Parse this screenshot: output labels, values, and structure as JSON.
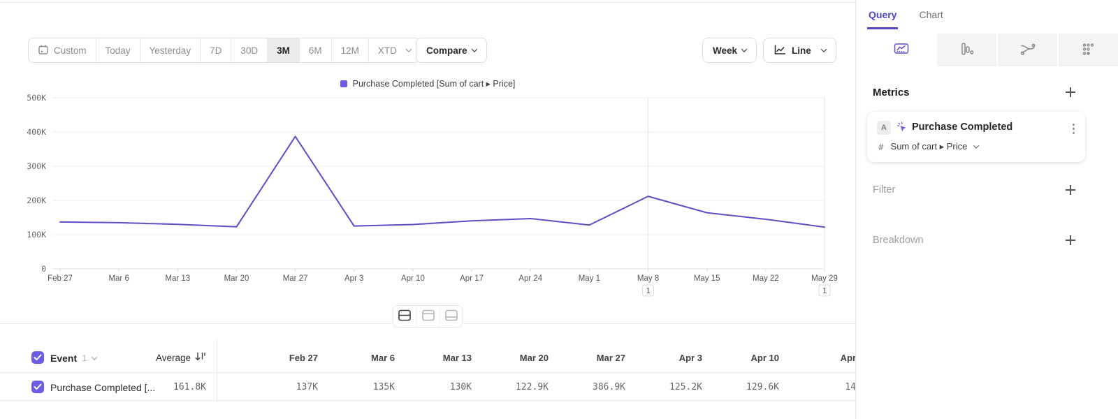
{
  "toolbar": {
    "date_ranges": [
      {
        "label": "Custom",
        "icon": "calendar-icon"
      },
      {
        "label": "Today"
      },
      {
        "label": "Yesterday"
      },
      {
        "label": "7D"
      },
      {
        "label": "30D"
      },
      {
        "label": "3M",
        "active": true
      },
      {
        "label": "6M"
      },
      {
        "label": "12M"
      },
      {
        "label": "XTD",
        "chevron": true
      }
    ],
    "compare_label": "Compare",
    "granularity_label": "Week",
    "chart_type_label": "Line"
  },
  "legend": {
    "label": "Purchase Completed [Sum of cart ▸ Price]",
    "color": "#6c5ce7"
  },
  "chart_data": {
    "type": "line",
    "categories": [
      "Feb 27",
      "Mar 6",
      "Mar 13",
      "Mar 20",
      "Mar 27",
      "Apr 3",
      "Apr 10",
      "Apr 17",
      "Apr 24",
      "May 1",
      "May 8",
      "May 15",
      "May 22",
      "May 29"
    ],
    "series": [
      {
        "name": "Purchase Completed [Sum of cart ▸ Price]",
        "values": [
          137000,
          135000,
          130000,
          122900,
          386900,
          125200,
          129600,
          140300,
          147000,
          128000,
          212000,
          164000,
          145000,
          122000
        ]
      }
    ],
    "title": "",
    "xlabel": "",
    "ylabel": "",
    "ylim": [
      0,
      500000
    ],
    "y_ticks": [
      "0",
      "100K",
      "200K",
      "300K",
      "400K",
      "500K"
    ],
    "grid": true,
    "legend_position": "top-center",
    "line_color": "#5b4fc8",
    "incomplete_markers": [
      {
        "category": "May 8",
        "badge": "1"
      },
      {
        "category": "May 29",
        "badge": "1"
      }
    ]
  },
  "layout_toggles": [
    "split-view-icon",
    "chart-only-icon",
    "table-only-icon"
  ],
  "table": {
    "header": {
      "event_label": "Event",
      "event_count": "1",
      "average_label": "Average",
      "columns": [
        "Feb 27",
        "Mar 6",
        "Mar 13",
        "Mar 20",
        "Mar 27",
        "Apr 3",
        "Apr 10",
        "Apr"
      ]
    },
    "rows": [
      {
        "name": "Purchase Completed [...",
        "average": "161.8K",
        "values": [
          "137K",
          "135K",
          "130K",
          "122.9K",
          "386.9K",
          "125.2K",
          "129.6K",
          "14"
        ]
      }
    ]
  },
  "right_panel": {
    "tabs": [
      {
        "label": "Query",
        "active": true
      },
      {
        "label": "Chart",
        "active": false
      }
    ],
    "chart_type_icons": [
      "insights-icon",
      "bar-chart-icon",
      "flow-icon",
      "retention-dots-icon"
    ],
    "metrics": {
      "title": "Metrics"
    },
    "metric_card": {
      "badge": "A",
      "event_name": "Purchase Completed",
      "aggregation_prefix": "#",
      "aggregation_label": "Sum of cart ▸ Price"
    },
    "filter": {
      "title": "Filter"
    },
    "breakdown": {
      "title": "Breakdown"
    }
  },
  "colors": {
    "accent": "#5b4fc8",
    "accent_bright": "#6c5ce7",
    "grid": "#ededed",
    "border": "#e3e3e3"
  }
}
